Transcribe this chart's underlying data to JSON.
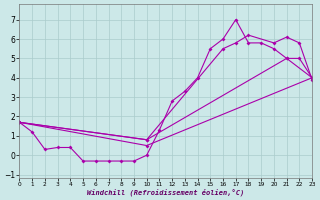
{
  "bg_color": "#cce8e8",
  "grid_color": "#aacccc",
  "line_color": "#aa00aa",
  "xlabel": "Windchill (Refroidissement éolien,°C)",
  "xlim": [
    0,
    23
  ],
  "ylim": [
    -1.2,
    7.8
  ],
  "xticks": [
    0,
    1,
    2,
    3,
    4,
    5,
    6,
    7,
    8,
    9,
    10,
    11,
    12,
    13,
    14,
    15,
    16,
    17,
    18,
    19,
    20,
    21,
    22,
    23
  ],
  "yticks": [
    -1,
    0,
    1,
    2,
    3,
    4,
    5,
    6,
    7
  ],
  "line1_x": [
    0,
    1,
    2,
    3,
    4,
    5,
    6,
    7,
    8,
    9,
    10,
    11,
    12,
    13,
    14,
    15,
    16,
    17,
    18,
    19,
    20,
    21,
    22,
    23
  ],
  "line1_y": [
    1.7,
    1.2,
    0.3,
    0.4,
    0.4,
    -0.3,
    -0.3,
    -0.3,
    -0.3,
    -0.3,
    0.0,
    1.3,
    2.8,
    3.3,
    4.0,
    5.5,
    6.0,
    7.0,
    5.8,
    5.8,
    5.5,
    5.0,
    5.0,
    4.0
  ],
  "line2_x": [
    0,
    10,
    16,
    17,
    18,
    20,
    21,
    22,
    23
  ],
  "line2_y": [
    1.7,
    0.8,
    5.5,
    5.8,
    6.2,
    5.8,
    6.1,
    5.8,
    3.9
  ],
  "line3_x": [
    0,
    10,
    21,
    23
  ],
  "line3_y": [
    1.7,
    0.8,
    5.0,
    4.0
  ],
  "line4_x": [
    0,
    10,
    23
  ],
  "line4_y": [
    1.7,
    0.5,
    4.0
  ]
}
